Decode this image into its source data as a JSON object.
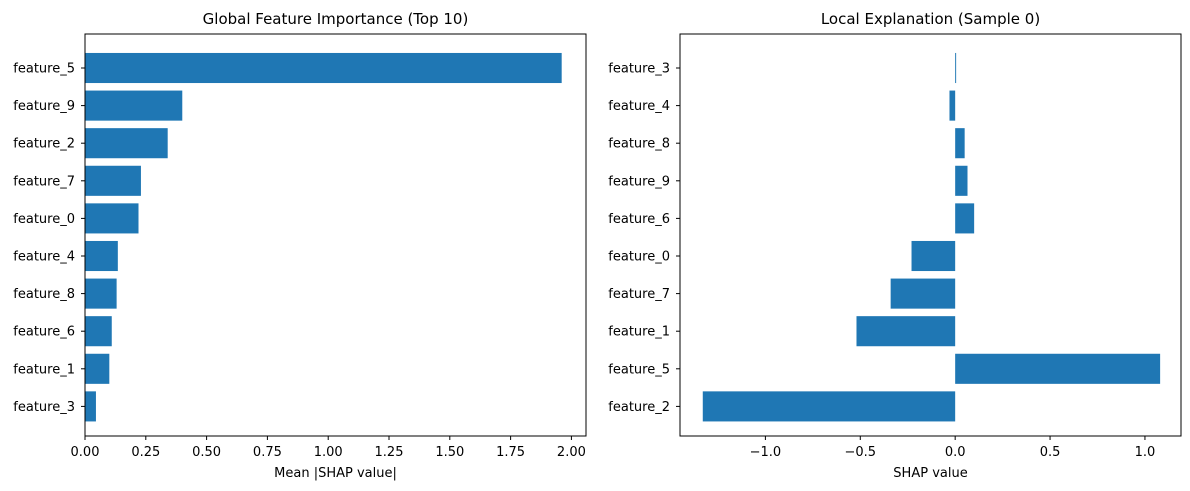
{
  "chart_data": [
    {
      "type": "bar",
      "orientation": "horizontal",
      "title": "Global Feature Importance (Top 10)",
      "xlabel": "Mean |SHAP value|",
      "ylabel": "",
      "categories": [
        "feature_5",
        "feature_9",
        "feature_2",
        "feature_7",
        "feature_0",
        "feature_4",
        "feature_8",
        "feature_6",
        "feature_1",
        "feature_3"
      ],
      "values": [
        1.96,
        0.4,
        0.34,
        0.23,
        0.22,
        0.135,
        0.13,
        0.11,
        0.1,
        0.045
      ],
      "xlim": [
        0,
        2.06
      ],
      "xticks": [
        0,
        0.25,
        0.5,
        0.75,
        1.0,
        1.25,
        1.5,
        1.75,
        2.0
      ],
      "xtick_labels": [
        "0.00",
        "0.25",
        "0.50",
        "0.75",
        "1.00",
        "1.25",
        "1.50",
        "1.75",
        "2.00"
      ],
      "grid": false,
      "color": "#1f77b4"
    },
    {
      "type": "bar",
      "orientation": "horizontal",
      "title": "Local Explanation (Sample 0)",
      "xlabel": "SHAP value",
      "ylabel": "",
      "categories": [
        "feature_3",
        "feature_4",
        "feature_8",
        "feature_9",
        "feature_6",
        "feature_0",
        "feature_7",
        "feature_1",
        "feature_5",
        "feature_2"
      ],
      "values": [
        0.005,
        -0.03,
        0.05,
        0.065,
        0.1,
        -0.23,
        -0.34,
        -0.52,
        1.08,
        -1.33
      ],
      "xlim": [
        -1.45,
        1.19
      ],
      "xticks": [
        -1.0,
        -0.5,
        0.0,
        0.5,
        1.0
      ],
      "xtick_labels": [
        "−1.0",
        "−0.5",
        "0.0",
        "0.5",
        "1.0"
      ],
      "grid": false,
      "color": "#1f77b4"
    }
  ]
}
